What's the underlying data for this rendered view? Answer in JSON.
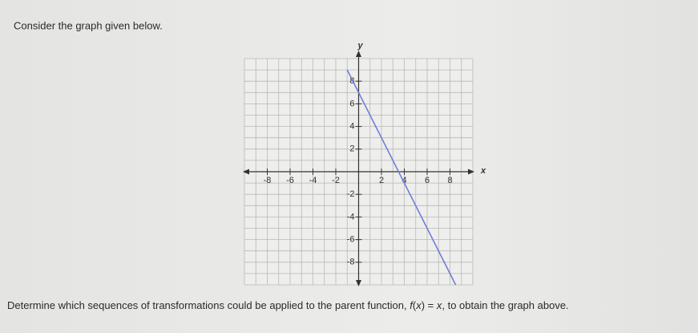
{
  "prompt": "Consider the graph given below.",
  "question": [
    "Determine which sequences of transformations could be applied to the parent function, ",
    "f",
    "(",
    "x",
    ") = ",
    "x",
    ", to obtain the graph above."
  ],
  "chart_data": {
    "type": "line",
    "xlabel": "x",
    "ylabel": "y",
    "x": [
      -1,
      8.5
    ],
    "series": [
      {
        "color": "#6f7fd6",
        "values": [
          9,
          -10
        ]
      }
    ],
    "xlim": [
      -10,
      10
    ],
    "ylim": [
      -10,
      10
    ],
    "xticks": [
      -8,
      -6,
      -4,
      -2,
      2,
      4,
      6,
      8
    ],
    "yticks": [
      -8,
      -6,
      -4,
      -2,
      2,
      4,
      6,
      8
    ],
    "grid": true
  }
}
